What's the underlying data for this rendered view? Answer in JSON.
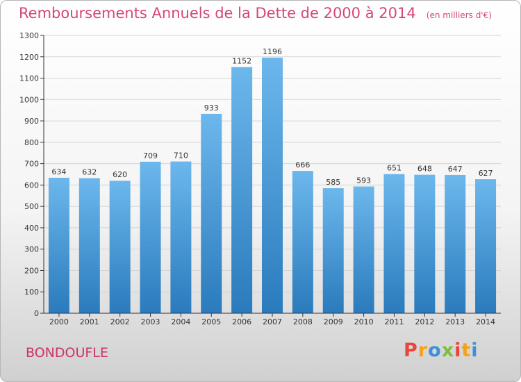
{
  "header": {
    "title": "Remboursements Annuels de la Dette de 2000 à 2014",
    "unit": "(en milliers d'€)"
  },
  "footer": {
    "city": "BONDOUFLE",
    "logo_letters": [
      "P",
      "r",
      "o",
      "x",
      "i",
      "t",
      "i"
    ],
    "logo_colors": [
      "#e8453c",
      "#f4a11c",
      "#3d8fd6",
      "#7bbf3a",
      "#e8453c",
      "#f4a11c",
      "#3d8fd6"
    ]
  },
  "colors": {
    "bar_top": "#6cb7ec",
    "bar_bottom": "#2a7bbd",
    "grid": "#d4d4d4",
    "axis": "#333333",
    "title": "#d6457a"
  },
  "chart_data": {
    "type": "bar",
    "title": "Remboursements Annuels de la Dette de 2000 à 2014",
    "subtitle": "(en milliers d'€)",
    "categories": [
      "2000",
      "2001",
      "2002",
      "2003",
      "2004",
      "2005",
      "2006",
      "2007",
      "2008",
      "2009",
      "2010",
      "2011",
      "2012",
      "2013",
      "2014"
    ],
    "values": [
      634,
      632,
      620,
      709,
      710,
      933,
      1152,
      1196,
      666,
      585,
      593,
      651,
      648,
      647,
      627
    ],
    "ylim": [
      0,
      1300
    ],
    "yticks": [
      0,
      100,
      200,
      300,
      400,
      500,
      600,
      700,
      800,
      900,
      1000,
      1100,
      1200,
      1300
    ],
    "grid": true,
    "legend": "none"
  }
}
